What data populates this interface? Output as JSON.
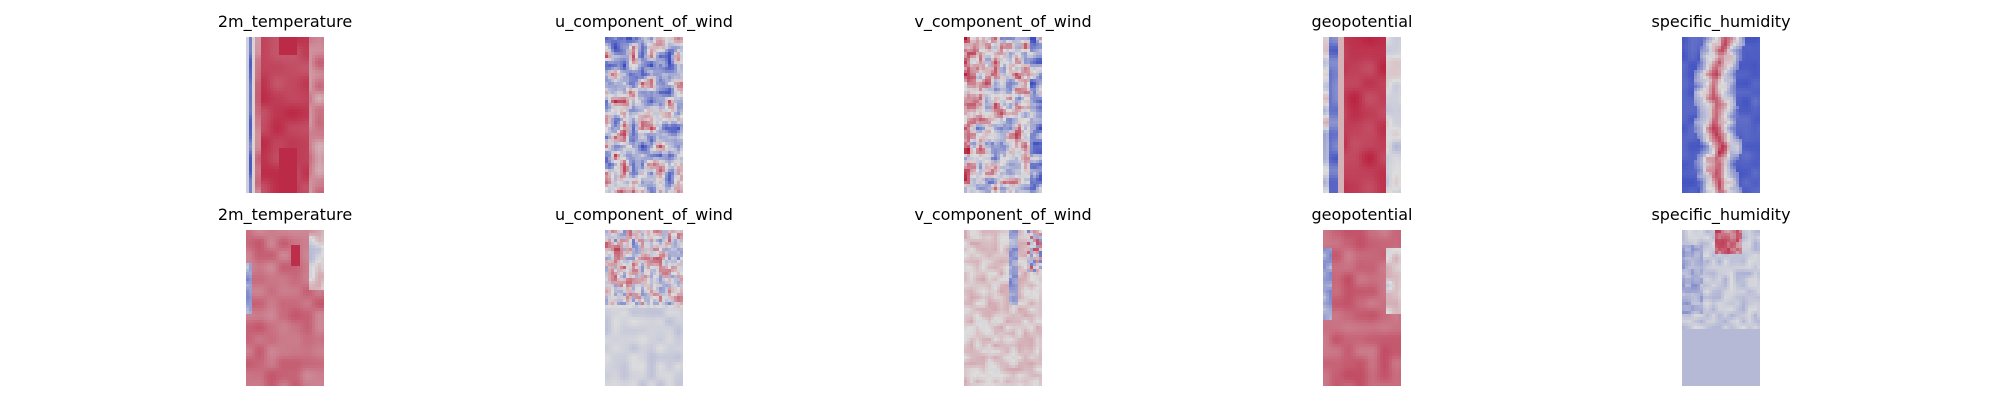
{
  "chart_data": {
    "type": "heatmap",
    "colormap": "coolwarm",
    "colormap_stops": [
      "#3b4cc0",
      "#dddddd",
      "#b40426"
    ],
    "layout": "2 rows x 5 columns",
    "axes": "off",
    "rows": [
      {
        "panels": [
          {
            "title": "2m_temperature",
            "pattern": "temp_full"
          },
          {
            "title": "u_component_of_wind",
            "pattern": "u_full"
          },
          {
            "title": "v_component_of_wind",
            "pattern": "v_full"
          },
          {
            "title": "geopotential",
            "pattern": "geo_full"
          },
          {
            "title": "specific_humidity",
            "pattern": "hum_full"
          }
        ]
      },
      {
        "panels": [
          {
            "title": "2m_temperature",
            "pattern": "temp_diff"
          },
          {
            "title": "u_component_of_wind",
            "pattern": "u_diff"
          },
          {
            "title": "v_component_of_wind",
            "pattern": "v_diff"
          },
          {
            "title": "geopotential",
            "pattern": "geo_diff"
          },
          {
            "title": "specific_humidity",
            "pattern": "hum_diff"
          }
        ]
      }
    ]
  }
}
